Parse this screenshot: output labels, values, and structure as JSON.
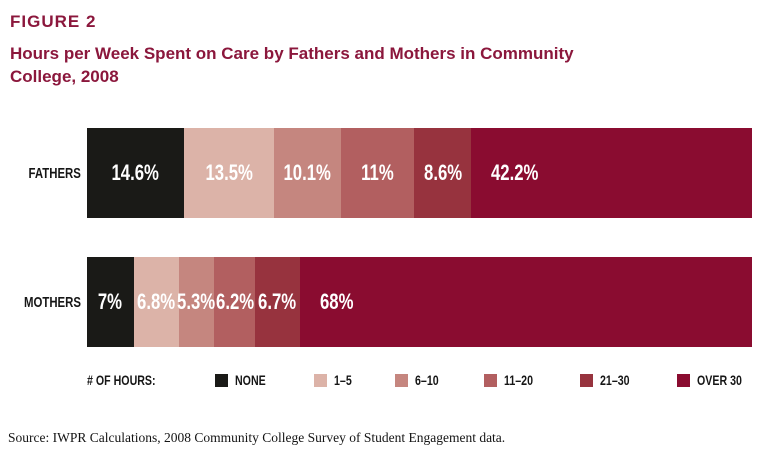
{
  "figure": {
    "label": "FIGURE 2",
    "title": "Hours per Week Spent on Care by Fathers and Mothers in Community College, 2008",
    "title_lines": [
      "Hours per Week Spent on Care by Fathers and Mothers in Community",
      "College, 2008"
    ]
  },
  "colors": {
    "heading": "#8b173c",
    "label_text": "#161616",
    "bar_value_text": "#ffffff",
    "background": "#ffffff"
  },
  "chart_data": {
    "type": "bar",
    "stacked": true,
    "orientation": "horizontal",
    "unit": "%",
    "categories": [
      "FATHERS",
      "MOTHERS"
    ],
    "segments": [
      "NONE",
      "1–5",
      "6–10",
      "11–20",
      "21–30",
      "OVER 30"
    ],
    "segment_colors": [
      "#1a1a17",
      "#dcb3a8",
      "#c5867f",
      "#b25f60",
      "#97333e",
      "#8a0c30"
    ],
    "series": [
      {
        "name": "FATHERS",
        "values": [
          14.6,
          13.5,
          10.1,
          11,
          8.6,
          42.2
        ],
        "labels": [
          "14.6%",
          "13.5%",
          "10.1%",
          "11%",
          "8.6%",
          "42.2%"
        ]
      },
      {
        "name": "MOTHERS",
        "values": [
          7,
          6.8,
          5.3,
          6.2,
          6.7,
          68
        ],
        "labels": [
          "7%",
          "6.8%",
          "5.3%",
          "6.2%",
          "6.7%",
          "68%"
        ]
      }
    ],
    "legend_title": "# OF HOURS:",
    "legend_position": "bottom",
    "xlim": [
      0,
      100
    ],
    "grid": false
  },
  "source": "Source: IWPR Calculations, 2008 Community College Survey of Student Engagement data."
}
